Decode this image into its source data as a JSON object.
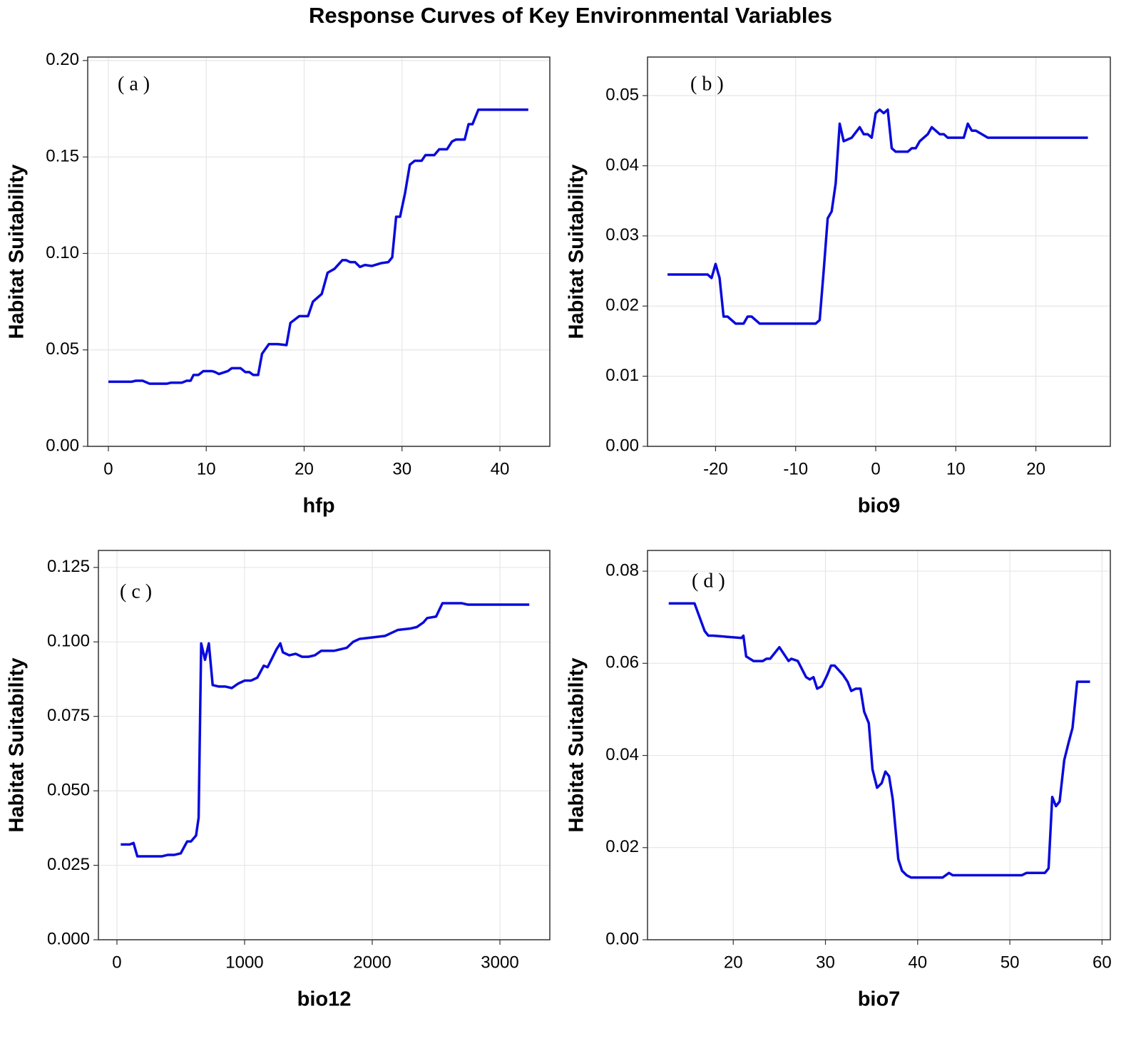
{
  "title": "Response Curves of Key Environmental Variables",
  "chart_data": [
    {
      "type": "line",
      "annotation": "( a )",
      "xlabel": "hfp",
      "ylabel": "Habitat Suitability",
      "color": "#0a0adc",
      "grid": true,
      "x": [
        0,
        2.4,
        2.8,
        3.5,
        4.2,
        6,
        6.4,
        7.5,
        8,
        8.4,
        8.7,
        9.2,
        9.7,
        10.6,
        10.9,
        11.3,
        11.9,
        12.2,
        12.6,
        13.5,
        14,
        14.4,
        14.8,
        15.3,
        15.7,
        16.4,
        17.3,
        18.2,
        18.6,
        19.5,
        20.4,
        20.9,
        21.8,
        22.4,
        23.1,
        23.9,
        24.3,
        24.7,
        25.2,
        25.7,
        26.2,
        26.9,
        27.9,
        28.6,
        29,
        29.4,
        29.8,
        30.3,
        30.8,
        31.3,
        32,
        32.4,
        33.3,
        33.8,
        34.6,
        35.1,
        35.5,
        36.4,
        36.8,
        37.2,
        37.8,
        42.9
      ],
      "values": [
        0.0335,
        0.0335,
        0.034,
        0.034,
        0.0325,
        0.0325,
        0.033,
        0.033,
        0.034,
        0.034,
        0.037,
        0.037,
        0.039,
        0.039,
        0.0385,
        0.0375,
        0.0385,
        0.039,
        0.0405,
        0.0405,
        0.0385,
        0.0385,
        0.037,
        0.037,
        0.048,
        0.053,
        0.053,
        0.0525,
        0.064,
        0.0675,
        0.0675,
        0.075,
        0.079,
        0.09,
        0.092,
        0.0965,
        0.0965,
        0.0955,
        0.0955,
        0.093,
        0.094,
        0.0935,
        0.095,
        0.0955,
        0.098,
        0.119,
        0.119,
        0.131,
        0.146,
        0.148,
        0.148,
        0.151,
        0.151,
        0.154,
        0.154,
        0.158,
        0.159,
        0.159,
        0.167,
        0.167,
        0.1745,
        0.1745
      ],
      "xlim": [
        -2.11,
        45.1
      ],
      "ylim": [
        0,
        0.2018
      ],
      "xticks": [
        0,
        10,
        20,
        30,
        40
      ],
      "yticks": [
        {
          "value": 0,
          "label": "0.00"
        },
        0.05,
        {
          "value": 0.1,
          "label": "0.10"
        },
        0.15,
        {
          "value": 0.2,
          "label": "0.20"
        }
      ]
    },
    {
      "type": "line",
      "annotation": "( b )",
      "xlabel": "bio9",
      "ylabel": "Habitat Suitability",
      "color": "#0a0adc",
      "grid": true,
      "x": [
        -26,
        -21,
        -20.5,
        -20,
        -19.5,
        -19,
        -18.5,
        -17.5,
        -16.5,
        -16,
        -15.5,
        -14.5,
        -7.5,
        -7,
        -6.5,
        -6,
        -5.5,
        -5,
        -4.5,
        -4,
        -3,
        -2,
        -1.5,
        -1,
        -0.5,
        0,
        0.5,
        1,
        1.5,
        2,
        2.5,
        4,
        4.5,
        5,
        5.5,
        6.5,
        7,
        8,
        8.5,
        9,
        11,
        11.5,
        12,
        12.5,
        14,
        26.5
      ],
      "values": [
        0.0245,
        0.0245,
        0.024,
        0.026,
        0.024,
        0.0185,
        0.0185,
        0.0175,
        0.0175,
        0.0185,
        0.0185,
        0.0175,
        0.0175,
        0.018,
        0.025,
        0.0325,
        0.0335,
        0.0375,
        0.046,
        0.0435,
        0.044,
        0.0455,
        0.0445,
        0.0445,
        0.044,
        0.0475,
        0.048,
        0.0475,
        0.048,
        0.0425,
        0.042,
        0.042,
        0.0425,
        0.0425,
        0.0435,
        0.0445,
        0.0455,
        0.0445,
        0.0445,
        0.044,
        0.044,
        0.046,
        0.045,
        0.045,
        0.044,
        0.044
      ],
      "xlim": [
        -28.5,
        29.3
      ],
      "ylim": [
        0,
        0.0555
      ],
      "xticks": [
        -20,
        -10,
        0,
        10,
        20
      ],
      "yticks": [
        {
          "value": 0,
          "label": "0.00"
        },
        0.01,
        0.02,
        0.03,
        0.04,
        0.05
      ]
    },
    {
      "type": "line",
      "annotation": "( c )",
      "xlabel": "bio12",
      "ylabel": "Habitat Suitability",
      "color": "#0a0adc",
      "grid": true,
      "x": [
        30,
        100,
        130,
        160,
        350,
        400,
        450,
        500,
        550,
        580,
        620,
        640,
        660,
        690,
        720,
        750,
        800,
        850,
        900,
        950,
        1000,
        1050,
        1100,
        1150,
        1180,
        1250,
        1280,
        1300,
        1350,
        1400,
        1450,
        1500,
        1550,
        1600,
        1700,
        1750,
        1800,
        1850,
        1900,
        2000,
        2100,
        2150,
        2200,
        2300,
        2350,
        2400,
        2430,
        2500,
        2550,
        2700,
        2750,
        3230
      ],
      "values": [
        0.032,
        0.032,
        0.0325,
        0.028,
        0.028,
        0.0285,
        0.0285,
        0.029,
        0.033,
        0.033,
        0.035,
        0.041,
        0.0995,
        0.094,
        0.0995,
        0.0855,
        0.085,
        0.085,
        0.0845,
        0.086,
        0.087,
        0.087,
        0.088,
        0.092,
        0.0915,
        0.0975,
        0.0995,
        0.0965,
        0.0955,
        0.096,
        0.095,
        0.095,
        0.0955,
        0.097,
        0.097,
        0.0975,
        0.098,
        0.1,
        0.101,
        0.1015,
        0.102,
        0.103,
        0.104,
        0.1045,
        0.105,
        0.1065,
        0.108,
        0.1085,
        0.113,
        0.113,
        0.1125,
        0.1125
      ],
      "xlim": [
        -145,
        3391
      ],
      "ylim": [
        0,
        0.1307
      ],
      "xticks": [
        0,
        1000,
        2000,
        3000
      ],
      "yticks": [
        {
          "value": 0,
          "label": "0.000"
        },
        0.025,
        {
          "value": 0.05,
          "label": "0.050"
        },
        0.075,
        {
          "value": 0.1,
          "label": "0.100"
        },
        0.125
      ]
    },
    {
      "type": "line",
      "annotation": "( d )",
      "xlabel": "bio7",
      "ylabel": "Habitat Suitability",
      "color": "#0a0adc",
      "grid": true,
      "x": [
        13,
        15.8,
        16.9,
        17.3,
        17.8,
        20.9,
        21.1,
        21.4,
        22.2,
        23.2,
        23.6,
        24,
        25,
        26,
        26.3,
        27,
        27.9,
        28.3,
        28.7,
        29.1,
        29.6,
        30.2,
        30.6,
        31,
        31.9,
        32.4,
        32.8,
        33.3,
        33.8,
        34.2,
        34.7,
        35.1,
        35.6,
        36.1,
        36.5,
        36.9,
        37.3,
        37.9,
        38.3,
        38.8,
        39.3,
        42.7,
        43.4,
        43.8,
        51.3,
        51.8,
        53.8,
        54.2,
        54.6,
        55,
        55.4,
        55.9,
        56.4,
        56.8,
        57.3,
        58.7
      ],
      "values": [
        0.073,
        0.073,
        0.067,
        0.066,
        0.066,
        0.0655,
        0.066,
        0.0615,
        0.0605,
        0.0605,
        0.061,
        0.061,
        0.0635,
        0.0605,
        0.061,
        0.0605,
        0.057,
        0.0565,
        0.057,
        0.0545,
        0.055,
        0.0575,
        0.0595,
        0.0595,
        0.0575,
        0.056,
        0.054,
        0.0545,
        0.0545,
        0.0495,
        0.047,
        0.037,
        0.033,
        0.034,
        0.0365,
        0.0355,
        0.0305,
        0.0175,
        0.015,
        0.014,
        0.0135,
        0.0135,
        0.0145,
        0.014,
        0.014,
        0.0145,
        0.0145,
        0.0155,
        0.031,
        0.029,
        0.03,
        0.039,
        0.043,
        0.046,
        0.056,
        0.056
      ],
      "xlim": [
        10.7,
        60.9
      ],
      "ylim": [
        0,
        0.0845
      ],
      "xticks": [
        20,
        30,
        40,
        50,
        60
      ],
      "yticks": [
        {
          "value": 0,
          "label": "0.00"
        },
        0.02,
        0.04,
        0.06,
        0.08
      ]
    }
  ]
}
